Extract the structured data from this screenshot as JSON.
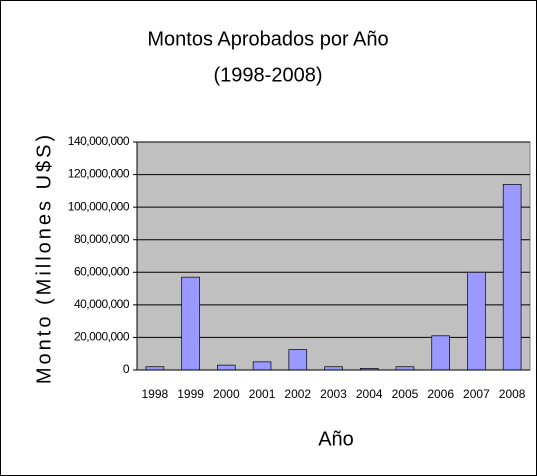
{
  "chart_data": {
    "type": "bar",
    "title": "Montos Aprobados por Año",
    "subtitle": "(1998-2008)",
    "y_label": "Monto (Millones U$S)",
    "x_label": "Año",
    "categories": [
      "1998",
      "1999",
      "2000",
      "2001",
      "2002",
      "2003",
      "2004",
      "2005",
      "2006",
      "2007",
      "2008"
    ],
    "values": [
      2000000,
      57000000,
      3000000,
      5000000,
      12500000,
      2000000,
      1000000,
      2000000,
      21000000,
      60000000,
      114000000
    ],
    "color": "#9999ff",
    "ylim": [
      0,
      140000000
    ],
    "yticks": [
      0,
      {
        "value": 20000000,
        "label": "20,000,000"
      },
      {
        "value": 40000000,
        "label": "40,000,000"
      },
      {
        "value": 60000000,
        "label": "60,000,000"
      },
      {
        "value": 80000000,
        "label": "80,000,000"
      },
      {
        "value": 100000000,
        "label": "100,000,000"
      },
      {
        "value": 120000000,
        "label": "120,000,000"
      },
      {
        "value": 140000000,
        "label": "140,000,000"
      }
    ],
    "grid": true
  }
}
